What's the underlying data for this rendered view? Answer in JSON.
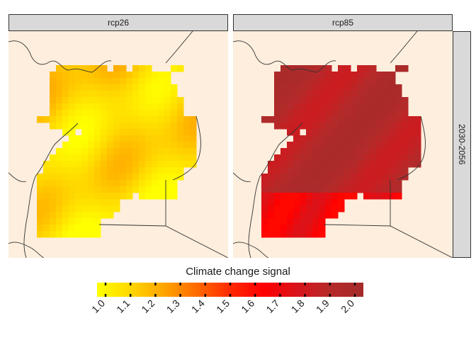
{
  "facet_columns": [
    "rcp26",
    "rcp85"
  ],
  "facet_row": "2030-2056",
  "legend": {
    "title": "Climate change signal",
    "ticks": [
      "1.0",
      "1.1",
      "1.2",
      "1.3",
      "1.4",
      "1.5",
      "1.6",
      "1.7",
      "1.8",
      "1.9",
      "2.0"
    ],
    "range": [
      1.0,
      2.0
    ],
    "colors": [
      "#ffff00",
      "#ffd700",
      "#ffa500",
      "#ff6a00",
      "#ff2a00",
      "#ff0000",
      "#d9141a",
      "#b52a2a",
      "#a52a2a"
    ]
  },
  "map": {
    "background": "#fdeedd",
    "border_color": "#333333"
  },
  "panels": [
    {
      "name": "rcp26",
      "signal_range": [
        1.0,
        1.3
      ]
    },
    {
      "name": "rcp85",
      "signal_range": [
        1.6,
        2.0
      ]
    }
  ]
}
